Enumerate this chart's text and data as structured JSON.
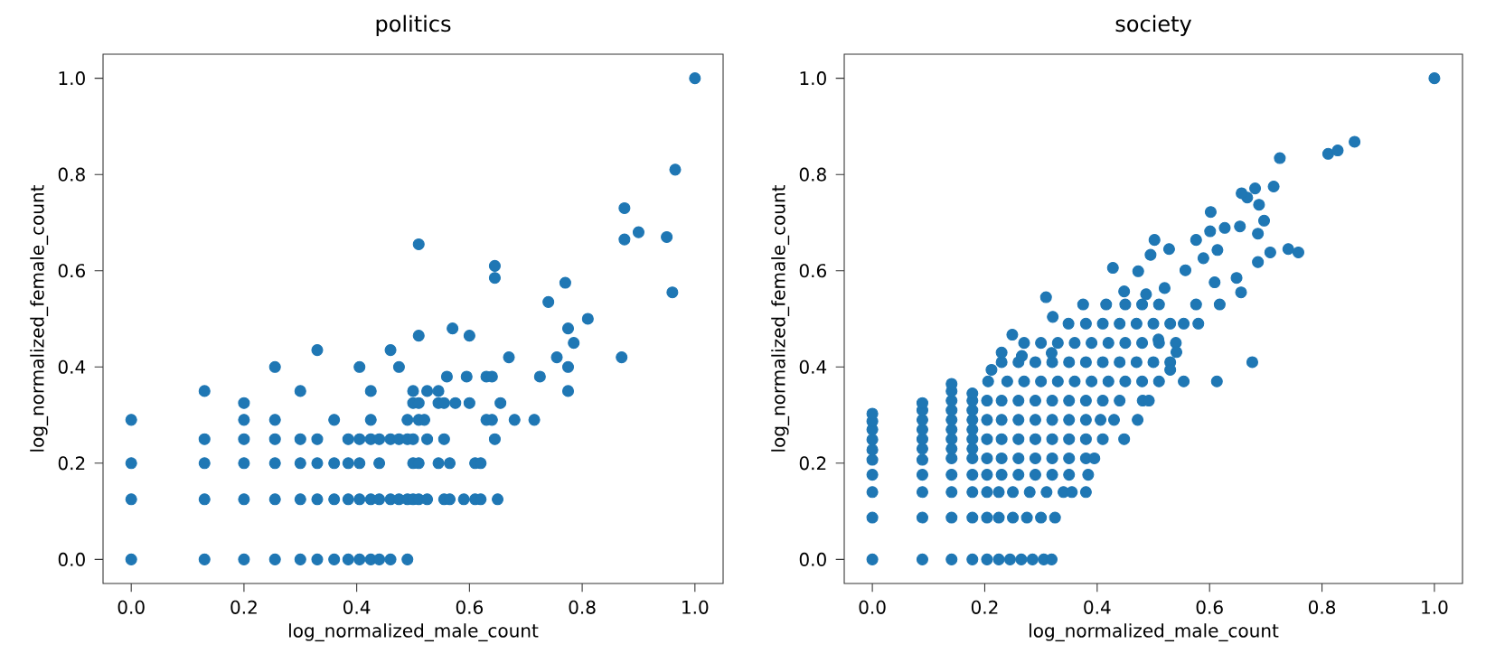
{
  "chart_data": [
    {
      "type": "scatter",
      "title": "politics",
      "xlabel": "log_normalized_male_count",
      "ylabel": "log_normalized_female_count",
      "color": "#1f77b4",
      "xlim": [
        -0.05,
        1.05
      ],
      "ylim": [
        -0.05,
        1.05
      ],
      "xticks": [
        {
          "value": 0,
          "label": "0.0"
        },
        {
          "value": 0.2,
          "label": "0.2"
        },
        {
          "value": 0.4,
          "label": "0.4"
        },
        {
          "value": 0.6,
          "label": "0.6"
        },
        {
          "value": 0.8,
          "label": "0.8"
        },
        {
          "value": 1,
          "label": "1.0"
        }
      ],
      "yticks": [
        {
          "value": 0,
          "label": "0.0"
        },
        {
          "value": 0.2,
          "label": "0.2"
        },
        {
          "value": 0.4,
          "label": "0.4"
        },
        {
          "value": 0.6,
          "label": "0.6"
        },
        {
          "value": 0.8,
          "label": "0.8"
        },
        {
          "value": 1,
          "label": "1.0"
        }
      ],
      "x": [
        0,
        0.13,
        0.2,
        0.255,
        0.3,
        0.33,
        0.36,
        0.385,
        0.405,
        0.425,
        0.44,
        0.46,
        0.49,
        0,
        0.13,
        0.2,
        0.255,
        0.3,
        0.33,
        0.36,
        0.385,
        0.405,
        0.425,
        0.44,
        0.46,
        0.475,
        0.49,
        0.5,
        0.51,
        0.525,
        0.555,
        0.565,
        0.59,
        0.61,
        0.62,
        0.65,
        0,
        0.13,
        0.2,
        0.255,
        0.3,
        0.33,
        0.36,
        0.385,
        0.405,
        0.44,
        0.5,
        0.51,
        0.545,
        0.565,
        0.61,
        0.62,
        0.13,
        0.2,
        0.255,
        0.3,
        0.33,
        0.385,
        0.405,
        0.425,
        0.44,
        0.46,
        0.475,
        0.49,
        0.5,
        0.525,
        0.555,
        0.645,
        0,
        0.2,
        0.255,
        0.36,
        0.425,
        0.49,
        0.51,
        0.52,
        0.63,
        0.64,
        0.68,
        0.715,
        0.2,
        0.5,
        0.51,
        0.545,
        0.555,
        0.575,
        0.6,
        0.655,
        0.13,
        0.3,
        0.425,
        0.5,
        0.525,
        0.545,
        0.775,
        0.56,
        0.595,
        0.63,
        0.64,
        0.725,
        0.255,
        0.405,
        0.475,
        0.775,
        0.67,
        0.755,
        0.87,
        0.33,
        0.46,
        0.51,
        0.6,
        0.57,
        0.775,
        0.785,
        0.81,
        0.74,
        0.77,
        0.645,
        0.645,
        0.51,
        0.96,
        0.875,
        0.95,
        0.9,
        0.875,
        0.965,
        1
      ],
      "values": [
        0,
        0,
        0,
        0,
        0,
        0,
        0,
        0,
        0,
        0,
        0,
        0,
        0,
        0.125,
        0.125,
        0.125,
        0.125,
        0.125,
        0.125,
        0.125,
        0.125,
        0.125,
        0.125,
        0.125,
        0.125,
        0.125,
        0.125,
        0.125,
        0.125,
        0.125,
        0.125,
        0.125,
        0.125,
        0.125,
        0.125,
        0.125,
        0.2,
        0.2,
        0.2,
        0.2,
        0.2,
        0.2,
        0.2,
        0.2,
        0.2,
        0.2,
        0.2,
        0.2,
        0.2,
        0.2,
        0.2,
        0.2,
        0.25,
        0.25,
        0.25,
        0.25,
        0.25,
        0.25,
        0.25,
        0.25,
        0.25,
        0.25,
        0.25,
        0.25,
        0.25,
        0.25,
        0.25,
        0.25,
        0.29,
        0.29,
        0.29,
        0.29,
        0.29,
        0.29,
        0.29,
        0.29,
        0.29,
        0.29,
        0.29,
        0.29,
        0.325,
        0.325,
        0.325,
        0.325,
        0.325,
        0.325,
        0.325,
        0.325,
        0.35,
        0.35,
        0.35,
        0.35,
        0.35,
        0.35,
        0.35,
        0.38,
        0.38,
        0.38,
        0.38,
        0.38,
        0.4,
        0.4,
        0.4,
        0.4,
        0.42,
        0.42,
        0.42,
        0.435,
        0.435,
        0.465,
        0.465,
        0.48,
        0.48,
        0.45,
        0.5,
        0.535,
        0.575,
        0.585,
        0.61,
        0.655,
        0.555,
        0.665,
        0.67,
        0.68,
        0.73,
        0.81,
        1
      ]
    },
    {
      "type": "scatter",
      "title": "society",
      "xlabel": "log_normalized_male_count",
      "ylabel": "log_normalized_female_count",
      "color": "#1f77b4",
      "xlim": [
        -0.05,
        1.05
      ],
      "ylim": [
        -0.05,
        1.05
      ],
      "xticks": [
        {
          "value": 0,
          "label": "0.0"
        },
        {
          "value": 0.2,
          "label": "0.2"
        },
        {
          "value": 0.4,
          "label": "0.4"
        },
        {
          "value": 0.6,
          "label": "0.6"
        },
        {
          "value": 0.8,
          "label": "0.8"
        },
        {
          "value": 1,
          "label": "1.0"
        }
      ],
      "yticks": [
        {
          "value": 0,
          "label": "0.0"
        },
        {
          "value": 0.2,
          "label": "0.2"
        },
        {
          "value": 0.4,
          "label": "0.4"
        },
        {
          "value": 0.6,
          "label": "0.6"
        },
        {
          "value": 0.8,
          "label": "0.8"
        },
        {
          "value": 1,
          "label": "1.0"
        }
      ],
      "x": [
        0,
        0,
        0,
        0,
        0,
        0,
        0,
        0,
        0,
        0,
        0.089,
        0.089,
        0.089,
        0.089,
        0.089,
        0.089,
        0.089,
        0.089,
        0.089,
        0.089,
        0.089,
        0.141,
        0.141,
        0.141,
        0.141,
        0.141,
        0.141,
        0.141,
        0.141,
        0.141,
        0.141,
        0.141,
        0.141,
        0.141,
        0.178,
        0.178,
        0.178,
        0.178,
        0.178,
        0.178,
        0.178,
        0.178,
        0.178,
        0.178,
        0.178,
        0.178,
        0.204,
        0.225,
        0.245,
        0.265,
        0.285,
        0.305,
        0.319,
        0.204,
        0.225,
        0.25,
        0.275,
        0.3,
        0.325,
        0.204,
        0.225,
        0.25,
        0.28,
        0.31,
        0.34,
        0.355,
        0.38,
        0.204,
        0.23,
        0.26,
        0.29,
        0.32,
        0.35,
        0.384,
        0.204,
        0.23,
        0.26,
        0.29,
        0.32,
        0.35,
        0.38,
        0.395,
        0.204,
        0.23,
        0.26,
        0.29,
        0.32,
        0.35,
        0.38,
        0.41,
        0.448,
        0.204,
        0.23,
        0.26,
        0.29,
        0.32,
        0.35,
        0.38,
        0.406,
        0.43,
        0.472,
        0.204,
        0.23,
        0.26,
        0.29,
        0.32,
        0.35,
        0.38,
        0.41,
        0.44,
        0.481,
        0.492,
        0.206,
        0.24,
        0.27,
        0.3,
        0.33,
        0.36,
        0.39,
        0.42,
        0.45,
        0.48,
        0.51,
        0.554,
        0.613,
        0.23,
        0.26,
        0.29,
        0.32,
        0.35,
        0.38,
        0.41,
        0.44,
        0.47,
        0.5,
        0.53,
        0.676,
        0.27,
        0.3,
        0.33,
        0.36,
        0.39,
        0.42,
        0.45,
        0.48,
        0.51,
        0.54,
        0.349,
        0.38,
        0.41,
        0.44,
        0.47,
        0.5,
        0.53,
        0.554,
        0.58,
        0.375,
        0.416,
        0.45,
        0.48,
        0.51,
        0.576,
        0.618,
        0.212,
        0.23,
        0.266,
        0.319,
        0.249,
        0.321,
        0.309,
        0.448,
        0.487,
        0.52,
        0.557,
        0.428,
        0.473,
        0.495,
        0.502,
        0.528,
        0.589,
        0.614,
        0.609,
        0.648,
        0.656,
        0.686,
        0.708,
        0.74,
        0.758,
        0.576,
        0.601,
        0.627,
        0.654,
        0.686,
        0.697,
        0.602,
        0.688,
        0.667,
        0.657,
        0.681,
        0.714,
        0.725,
        0.811,
        0.828,
        0.858,
        1,
        0.53,
        0.541,
        0.509
      ],
      "values": [
        0,
        0.087,
        0.14,
        0.176,
        0.207,
        0.228,
        0.249,
        0.27,
        0.287,
        0.303,
        0,
        0.087,
        0.14,
        0.176,
        0.207,
        0.23,
        0.25,
        0.27,
        0.29,
        0.31,
        0.325,
        0,
        0.087,
        0.14,
        0.176,
        0.21,
        0.23,
        0.25,
        0.27,
        0.29,
        0.31,
        0.33,
        0.35,
        0.365,
        0,
        0.087,
        0.14,
        0.176,
        0.21,
        0.23,
        0.25,
        0.27,
        0.29,
        0.31,
        0.33,
        0.345,
        0,
        0,
        0,
        0,
        0,
        0,
        0,
        0.087,
        0.087,
        0.087,
        0.087,
        0.087,
        0.087,
        0.14,
        0.14,
        0.14,
        0.14,
        0.14,
        0.14,
        0.14,
        0.14,
        0.176,
        0.176,
        0.176,
        0.176,
        0.176,
        0.176,
        0.176,
        0.21,
        0.21,
        0.21,
        0.21,
        0.21,
        0.21,
        0.21,
        0.21,
        0.25,
        0.25,
        0.25,
        0.25,
        0.25,
        0.25,
        0.25,
        0.25,
        0.25,
        0.29,
        0.29,
        0.29,
        0.29,
        0.29,
        0.29,
        0.29,
        0.29,
        0.29,
        0.29,
        0.33,
        0.33,
        0.33,
        0.33,
        0.33,
        0.33,
        0.33,
        0.33,
        0.33,
        0.33,
        0.33,
        0.37,
        0.37,
        0.37,
        0.37,
        0.37,
        0.37,
        0.37,
        0.37,
        0.37,
        0.37,
        0.37,
        0.37,
        0.37,
        0.41,
        0.41,
        0.41,
        0.41,
        0.41,
        0.41,
        0.41,
        0.41,
        0.41,
        0.41,
        0.41,
        0.41,
        0.45,
        0.45,
        0.45,
        0.45,
        0.45,
        0.45,
        0.45,
        0.45,
        0.45,
        0.45,
        0.49,
        0.49,
        0.49,
        0.49,
        0.49,
        0.49,
        0.49,
        0.49,
        0.49,
        0.53,
        0.53,
        0.53,
        0.53,
        0.53,
        0.53,
        0.53,
        0.394,
        0.43,
        0.423,
        0.429,
        0.467,
        0.504,
        0.545,
        0.557,
        0.551,
        0.564,
        0.601,
        0.606,
        0.599,
        0.633,
        0.664,
        0.645,
        0.626,
        0.643,
        0.576,
        0.585,
        0.555,
        0.618,
        0.638,
        0.645,
        0.638,
        0.664,
        0.682,
        0.689,
        0.692,
        0.677,
        0.704,
        0.722,
        0.737,
        0.752,
        0.761,
        0.771,
        0.775,
        0.834,
        0.843,
        0.85,
        0.868,
        1,
        0.394,
        0.431,
        0.457
      ]
    }
  ]
}
